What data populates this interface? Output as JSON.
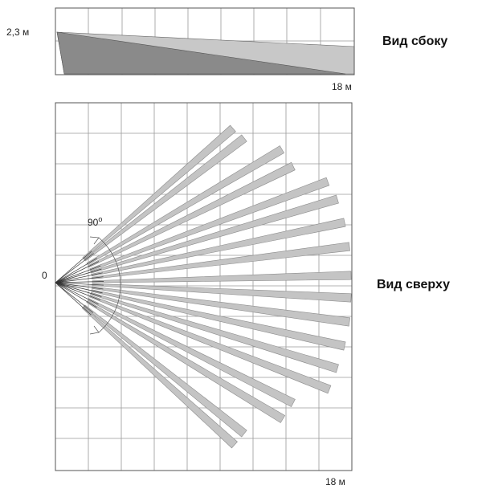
{
  "side_view": {
    "title": "Вид сбоку",
    "height_label": "2,3 м",
    "distance_label": "18 м"
  },
  "top_view": {
    "title": "Вид сверху",
    "origin_label": "0",
    "angle_label": "90",
    "angle_unit": "o",
    "distance_label": "18 м"
  },
  "colors": {
    "beam_fill": "#c4c4c4",
    "upper_zone": "#c8c8c8",
    "lower_zone": "#8a8a8a",
    "grid": "#9a9a9a"
  }
}
